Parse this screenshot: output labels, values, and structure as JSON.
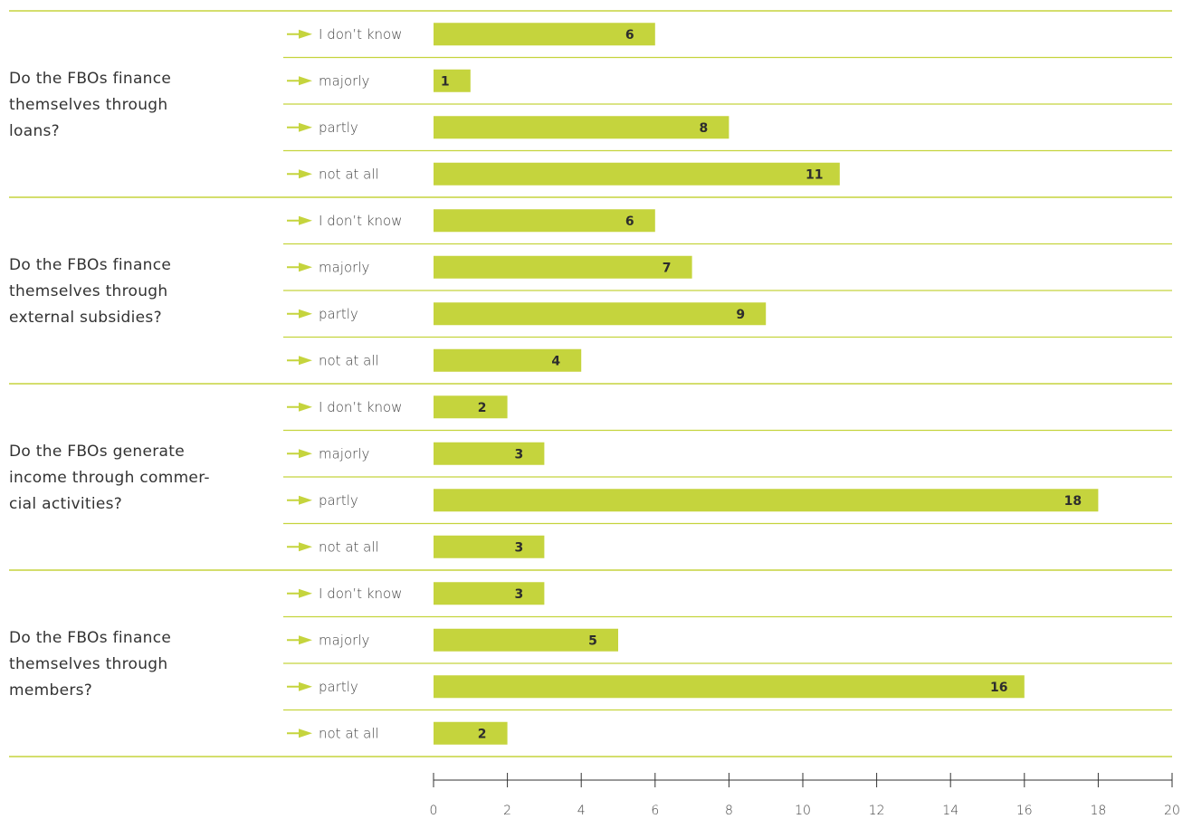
{
  "chart_data": {
    "type": "bar",
    "orientation": "horizontal",
    "groups": [
      {
        "question": [
          "Do the FBOs finance",
          "themselves through",
          "loans?"
        ],
        "categories": [
          "I don’t know",
          "majorly",
          "partly",
          "not at all"
        ],
        "values": [
          6,
          1,
          8,
          11
        ]
      },
      {
        "question": [
          "Do the FBOs finance",
          "themselves through",
          "external subsidies?"
        ],
        "categories": [
          "I don’t know",
          "majorly",
          "partly",
          "not at all"
        ],
        "values": [
          6,
          7,
          9,
          4
        ]
      },
      {
        "question": [
          "Do the FBOs generate",
          "income through commer-",
          "cial activities?"
        ],
        "categories": [
          "I don’t know",
          "majorly",
          "partly",
          "not at all"
        ],
        "values": [
          2,
          3,
          18,
          3
        ]
      },
      {
        "question": [
          "Do the FBOs finance",
          "themselves through",
          "members?"
        ],
        "categories": [
          "I don’t know",
          "majorly",
          "partly",
          "not at all"
        ],
        "values": [
          3,
          5,
          16,
          2
        ]
      }
    ],
    "xlim": [
      0,
      20
    ],
    "xticks": [
      "0",
      "2",
      "4",
      "6",
      "8",
      "10",
      "12",
      "14",
      "16",
      "18",
      "20"
    ],
    "grid": false,
    "legend": "none",
    "colors": {
      "bar": "#c5d43d",
      "rule": "#c5d43d",
      "arrow": "#c5d43d",
      "axis": "#333333"
    }
  }
}
